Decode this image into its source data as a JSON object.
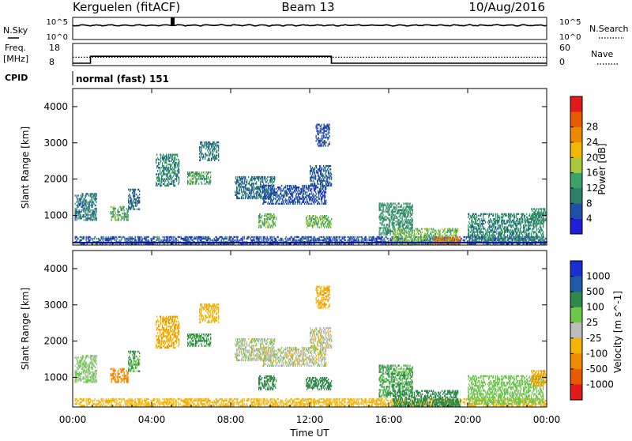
{
  "header": {
    "station": "Kerguelen (fitACF)",
    "beam": "Beam 13",
    "date": "10/Aug/2016"
  },
  "noise_panel": {
    "left_label": "N.Sky",
    "left_ticks": [
      "10^5",
      "10^0"
    ],
    "right_label": "N.Search",
    "right_ticks": [
      "10^5",
      "10^0"
    ]
  },
  "freq_panel": {
    "left_label_1": "Freq.",
    "left_label_2": "[MHz]",
    "left_ticks": [
      "18",
      "8"
    ],
    "right_label": "Nave",
    "right_ticks": [
      "60",
      "0"
    ],
    "freq_levels": {
      "low": 8,
      "high": 12,
      "switch_up_hour": 0.9,
      "switch_down_hour": 13.1
    },
    "nave_level": 12
  },
  "cpid": {
    "label": "CPID",
    "value": "normal (fast) 151"
  },
  "x_axis": {
    "label": "Time UT",
    "ticks": [
      "00:00",
      "04:00",
      "08:00",
      "12:00",
      "16:00",
      "20:00",
      "00:00"
    ],
    "range_hours": [
      0,
      24
    ]
  },
  "y_axis": {
    "label": "Slant Range [km]",
    "ticks": [
      "1000",
      "2000",
      "3000",
      "4000"
    ],
    "range_km": [
      180,
      4500
    ]
  },
  "power_colorbar": {
    "label": "Power [dB]",
    "ticks": [
      "4",
      "8",
      "12",
      "16",
      "20",
      "24",
      "28"
    ],
    "colors": [
      "#1f20d8",
      "#1f4fa8",
      "#2e7f6a",
      "#3aa36a",
      "#a8c83c",
      "#f0b800",
      "#ef8a00",
      "#e85a00",
      "#e41a1a"
    ]
  },
  "velocity_colorbar": {
    "label": "Velocity [m s^-1]",
    "ticks": [
      "1000",
      "500",
      "100",
      "25",
      "-25",
      "-100",
      "-500",
      "-1000"
    ],
    "colors": [
      "#1a2fd2",
      "#1e5aa8",
      "#2d8a4a",
      "#6cc84a",
      "#bdbdbd",
      "#f4b400",
      "#f08a00",
      "#e85a00",
      "#e41a1a"
    ]
  },
  "chart_data": {
    "type": "heatmap",
    "title": "Kerguelen (fitACF)  Beam 13  10/Aug/2016",
    "xlabel": "Time UT",
    "ylabel": "Slant Range [km]",
    "xlim": [
      0,
      24
    ],
    "ylim": [
      180,
      4500
    ],
    "panels": [
      "Power [dB]",
      "Velocity [m s^-1]"
    ],
    "scatter_regions": [
      {
        "t0": 0.1,
        "t1": 1.2,
        "r0": 850,
        "r1": 1600,
        "power": 10,
        "velocity": 40
      },
      {
        "t0": 0.1,
        "t1": 24.0,
        "r0": 200,
        "r1": 420,
        "power": 6,
        "velocity": -60
      },
      {
        "t0": 1.9,
        "t1": 2.8,
        "r0": 850,
        "r1": 1250,
        "power": 14,
        "velocity": -300
      },
      {
        "t0": 2.8,
        "t1": 3.4,
        "r0": 1150,
        "r1": 1700,
        "power": 8,
        "velocity": 100
      },
      {
        "t0": 4.2,
        "t1": 5.4,
        "r0": 1800,
        "r1": 2700,
        "power": 11,
        "velocity": -80
      },
      {
        "t0": 5.8,
        "t1": 7.0,
        "r0": 1850,
        "r1": 2200,
        "power": 14,
        "velocity": 120
      },
      {
        "t0": 6.4,
        "t1": 7.4,
        "r0": 2500,
        "r1": 3000,
        "power": 10,
        "velocity": -60
      },
      {
        "t0": 8.2,
        "t1": 10.2,
        "r0": 1450,
        "r1": 2050,
        "power": 9,
        "velocity": 10
      },
      {
        "t0": 9.6,
        "t1": 12.8,
        "r0": 1300,
        "r1": 1800,
        "power": 6,
        "velocity": 0
      },
      {
        "t0": 12.0,
        "t1": 13.1,
        "r0": 1800,
        "r1": 2350,
        "power": 7,
        "velocity": 0
      },
      {
        "t0": 11.8,
        "t1": 13.1,
        "r0": 650,
        "r1": 1000,
        "power": 16,
        "velocity": 150
      },
      {
        "t0": 9.4,
        "t1": 10.3,
        "r0": 650,
        "r1": 1050,
        "power": 15,
        "velocity": 130
      },
      {
        "t0": 12.3,
        "t1": 13.0,
        "r0": 2900,
        "r1": 3500,
        "power": 6,
        "velocity": -80
      },
      {
        "t0": 15.5,
        "t1": 17.2,
        "r0": 450,
        "r1": 1350,
        "power": 12,
        "velocity": 110
      },
      {
        "t0": 16.2,
        "t1": 19.5,
        "r0": 200,
        "r1": 650,
        "power": 16,
        "velocity": 140
      },
      {
        "t0": 18.2,
        "t1": 19.6,
        "r0": 180,
        "r1": 400,
        "power": 28,
        "velocity": 160
      },
      {
        "t0": 20.0,
        "t1": 23.8,
        "r0": 250,
        "r1": 1050,
        "power": 11,
        "velocity": 60
      },
      {
        "t0": 23.2,
        "t1": 23.95,
        "r0": 750,
        "r1": 1200,
        "power": 12,
        "velocity": -90
      }
    ],
    "grid": false,
    "legend": "right (two colorbars)"
  }
}
